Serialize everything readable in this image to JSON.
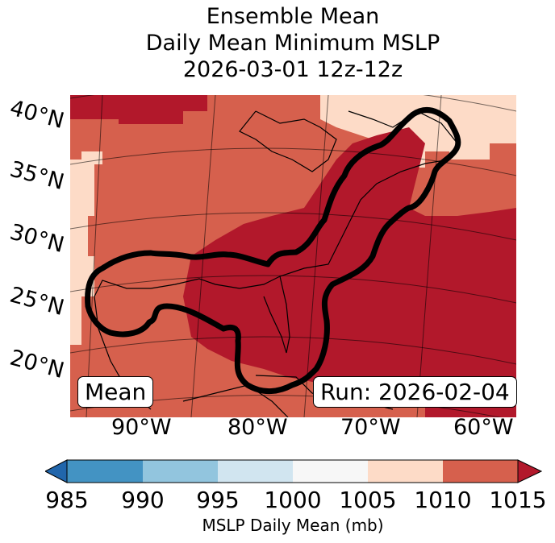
{
  "title": {
    "line1": "Ensemble Mean",
    "line2": "Daily Mean Minimum MSLP",
    "line3": "2026-03-01 12z-12z"
  },
  "map": {
    "lat_labels": [
      "40°N",
      "35°N",
      "30°N",
      "25°N",
      "20°N"
    ],
    "lon_labels": [
      "90°W",
      "80°W",
      "70°W",
      "60°W"
    ],
    "mean_label": "Mean",
    "run_label": "Run: 2026-02-04",
    "contour_color": "#000000",
    "land_outline_color": "#000000"
  },
  "colorbar": {
    "ticks": [
      "985",
      "990",
      "995",
      "1000",
      "1005",
      "1010",
      "1015"
    ],
    "label": "MSLP Daily Mean (mb)",
    "colors": [
      "#2166ac",
      "#4393c3",
      "#92c5de",
      "#d1e5f0",
      "#f7f7f7",
      "#fddbc7",
      "#d6604d",
      "#b2182b"
    ]
  }
}
